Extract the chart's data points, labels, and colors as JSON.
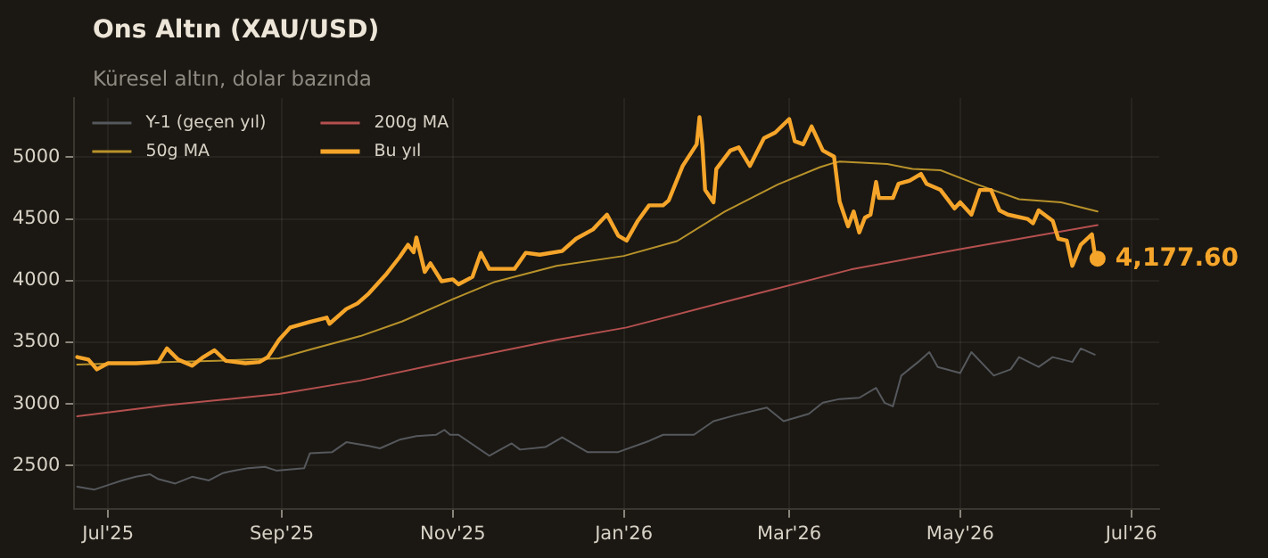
{
  "chart_data": {
    "type": "line",
    "title": "Ons Altın (XAU/USD)",
    "subtitle": "Küresel altın, dolar bazında",
    "xlim": [
      "2025-06-19",
      "2026-07-11"
    ],
    "xticks": [
      {
        "value": "2025-07-01",
        "label": "Jul'25"
      },
      {
        "value": "2025-09-01",
        "label": "Sep'25"
      },
      {
        "value": "2025-11-01",
        "label": "Nov'25"
      },
      {
        "value": "2026-01-01",
        "label": "Jan'26"
      },
      {
        "value": "2026-03-01",
        "label": "Mar'26"
      },
      {
        "value": "2026-05-01",
        "label": "May'26"
      },
      {
        "value": "2026-07-01",
        "label": "Jul'26"
      }
    ],
    "ylim": [
      2150,
      5480
    ],
    "yticks": [
      2500,
      3000,
      3500,
      4000,
      4500,
      5000
    ],
    "grid": true,
    "legend": "top left",
    "series": [
      {
        "name": "Y-1 (geçen yıl)",
        "color": "#55585c",
        "x": [
          "2025-06-20",
          "2025-06-26",
          "2025-07-02",
          "2025-07-06",
          "2025-07-11",
          "2025-07-16",
          "2025-07-19",
          "2025-07-25",
          "2025-07-31",
          "2025-08-06",
          "2025-08-11",
          "2025-08-15",
          "2025-08-20",
          "2025-08-26",
          "2025-08-30",
          "2025-09-09",
          "2025-09-11",
          "2025-09-19",
          "2025-09-24",
          "2025-10-02",
          "2025-10-06",
          "2025-10-13",
          "2025-10-19",
          "2025-10-26",
          "2025-10-29",
          "2025-10-31",
          "2025-11-03",
          "2025-11-14",
          "2025-11-22",
          "2025-11-25",
          "2025-12-04",
          "2025-12-10",
          "2025-12-19",
          "2025-12-30",
          "2026-01-10",
          "2026-01-15",
          "2026-01-26",
          "2026-02-02",
          "2026-02-10",
          "2026-02-21",
          "2026-02-27",
          "2026-03-08",
          "2026-03-13",
          "2026-03-19",
          "2026-03-26",
          "2026-04-01",
          "2026-04-04",
          "2026-04-07",
          "2026-04-10",
          "2026-04-16",
          "2026-04-20",
          "2026-04-23",
          "2026-05-01",
          "2026-05-05",
          "2026-05-13",
          "2026-05-19",
          "2026-05-22",
          "2026-05-29",
          "2026-06-03",
          "2026-06-10",
          "2026-06-13",
          "2026-06-18"
        ],
        "values": [
          2330,
          2305,
          2350,
          2380,
          2410,
          2430,
          2390,
          2355,
          2410,
          2380,
          2440,
          2460,
          2480,
          2490,
          2460,
          2480,
          2600,
          2610,
          2690,
          2660,
          2640,
          2710,
          2740,
          2750,
          2790,
          2750,
          2750,
          2580,
          2680,
          2630,
          2650,
          2730,
          2610,
          2610,
          2700,
          2750,
          2750,
          2860,
          2910,
          2970,
          2860,
          2920,
          3010,
          3040,
          3050,
          3130,
          3010,
          2980,
          3230,
          3340,
          3420,
          3300,
          3250,
          3420,
          3230,
          3280,
          3380,
          3300,
          3380,
          3340,
          3450,
          3400
        ]
      },
      {
        "name": "50g MA",
        "color": "#b8922a",
        "x": [
          "2025-06-20",
          "2025-07-14",
          "2025-08-09",
          "2025-08-31",
          "2025-09-11",
          "2025-09-29",
          "2025-10-14",
          "2025-11-01",
          "2025-11-16",
          "2025-12-08",
          "2026-01-01",
          "2026-01-20",
          "2026-02-06",
          "2026-02-25",
          "2026-03-12",
          "2026-03-17",
          "2026-03-19",
          "2026-04-05",
          "2026-04-14",
          "2026-04-24",
          "2026-05-07",
          "2026-05-22",
          "2026-06-06",
          "2026-06-19"
        ],
        "values": [
          3320,
          3335,
          3350,
          3370,
          3440,
          3550,
          3670,
          3850,
          3990,
          4120,
          4200,
          4320,
          4560,
          4780,
          4920,
          4955,
          4965,
          4945,
          4905,
          4895,
          4780,
          4660,
          4635,
          4560
        ]
      },
      {
        "name": "200g MA",
        "color": "#b5504f",
        "x": [
          "2025-06-20",
          "2025-07-22",
          "2025-08-31",
          "2025-09-29",
          "2025-11-01",
          "2025-12-08",
          "2026-01-02",
          "2026-02-10",
          "2026-03-23",
          "2026-05-01",
          "2026-06-19"
        ],
        "values": [
          2900,
          2990,
          3080,
          3190,
          3350,
          3520,
          3620,
          3850,
          4090,
          4255,
          4450
        ]
      },
      {
        "name": "Bu yıl",
        "color": "#f5a52a",
        "x": [
          "2025-06-20",
          "2025-06-24",
          "2025-06-27",
          "2025-07-01",
          "2025-07-11",
          "2025-07-19",
          "2025-07-22",
          "2025-07-26",
          "2025-07-31",
          "2025-08-04",
          "2025-08-08",
          "2025-08-12",
          "2025-08-19",
          "2025-08-24",
          "2025-08-27",
          "2025-08-31",
          "2025-09-04",
          "2025-09-11",
          "2025-09-17",
          "2025-09-18",
          "2025-09-24",
          "2025-09-28",
          "2025-10-02",
          "2025-10-08",
          "2025-10-13",
          "2025-10-16",
          "2025-10-18",
          "2025-10-19",
          "2025-10-22",
          "2025-10-24",
          "2025-10-28",
          "2025-11-01",
          "2025-11-03",
          "2025-11-08",
          "2025-11-11",
          "2025-11-14",
          "2025-11-23",
          "2025-11-27",
          "2025-12-02",
          "2025-12-10",
          "2025-12-15",
          "2025-12-21",
          "2025-12-26",
          "2025-12-30",
          "2026-01-02",
          "2026-01-06",
          "2026-01-10",
          "2026-01-15",
          "2026-01-17",
          "2026-01-22",
          "2026-01-27",
          "2026-01-28",
          "2026-01-29",
          "2026-01-30",
          "2026-02-02",
          "2026-02-03",
          "2026-02-08",
          "2026-02-11",
          "2026-02-15",
          "2026-02-20",
          "2026-02-24",
          "2026-03-01",
          "2026-03-03",
          "2026-03-06",
          "2026-03-09",
          "2026-03-13",
          "2026-03-17",
          "2026-03-19",
          "2026-03-22",
          "2026-03-24",
          "2026-03-26",
          "2026-03-28",
          "2026-03-30",
          "2026-04-01",
          "2026-04-02",
          "2026-04-07",
          "2026-04-09",
          "2026-04-13",
          "2026-04-17",
          "2026-04-19",
          "2026-04-24",
          "2026-04-29",
          "2026-05-01",
          "2026-05-05",
          "2026-05-08",
          "2026-05-12",
          "2026-05-15",
          "2026-05-18",
          "2026-05-25",
          "2026-05-27",
          "2026-05-29",
          "2026-06-03",
          "2026-06-05",
          "2026-06-08",
          "2026-06-10",
          "2026-06-13",
          "2026-06-17",
          "2026-06-18",
          "2026-06-19"
        ],
        "values": [
          3380,
          3360,
          3280,
          3330,
          3330,
          3340,
          3450,
          3360,
          3310,
          3380,
          3435,
          3350,
          3330,
          3340,
          3380,
          3520,
          3620,
          3665,
          3700,
          3650,
          3770,
          3815,
          3895,
          4045,
          4190,
          4290,
          4230,
          4350,
          4070,
          4140,
          3995,
          4010,
          3970,
          4030,
          4225,
          4095,
          4095,
          4225,
          4210,
          4240,
          4340,
          4415,
          4535,
          4365,
          4325,
          4485,
          4610,
          4610,
          4650,
          4930,
          5105,
          5325,
          5105,
          4735,
          4635,
          4905,
          5055,
          5080,
          4930,
          5155,
          5200,
          5310,
          5130,
          5105,
          5250,
          5055,
          5005,
          4640,
          4440,
          4560,
          4390,
          4510,
          4535,
          4800,
          4670,
          4670,
          4785,
          4810,
          4865,
          4785,
          4735,
          4585,
          4635,
          4535,
          4735,
          4735,
          4570,
          4535,
          4500,
          4465,
          4570,
          4485,
          4340,
          4325,
          4120,
          4290,
          4375,
          4215,
          4177.6
        ]
      }
    ],
    "annotations": [
      {
        "text": "4,177.60",
        "x": "2026-06-19",
        "y": 4177.6
      }
    ]
  }
}
